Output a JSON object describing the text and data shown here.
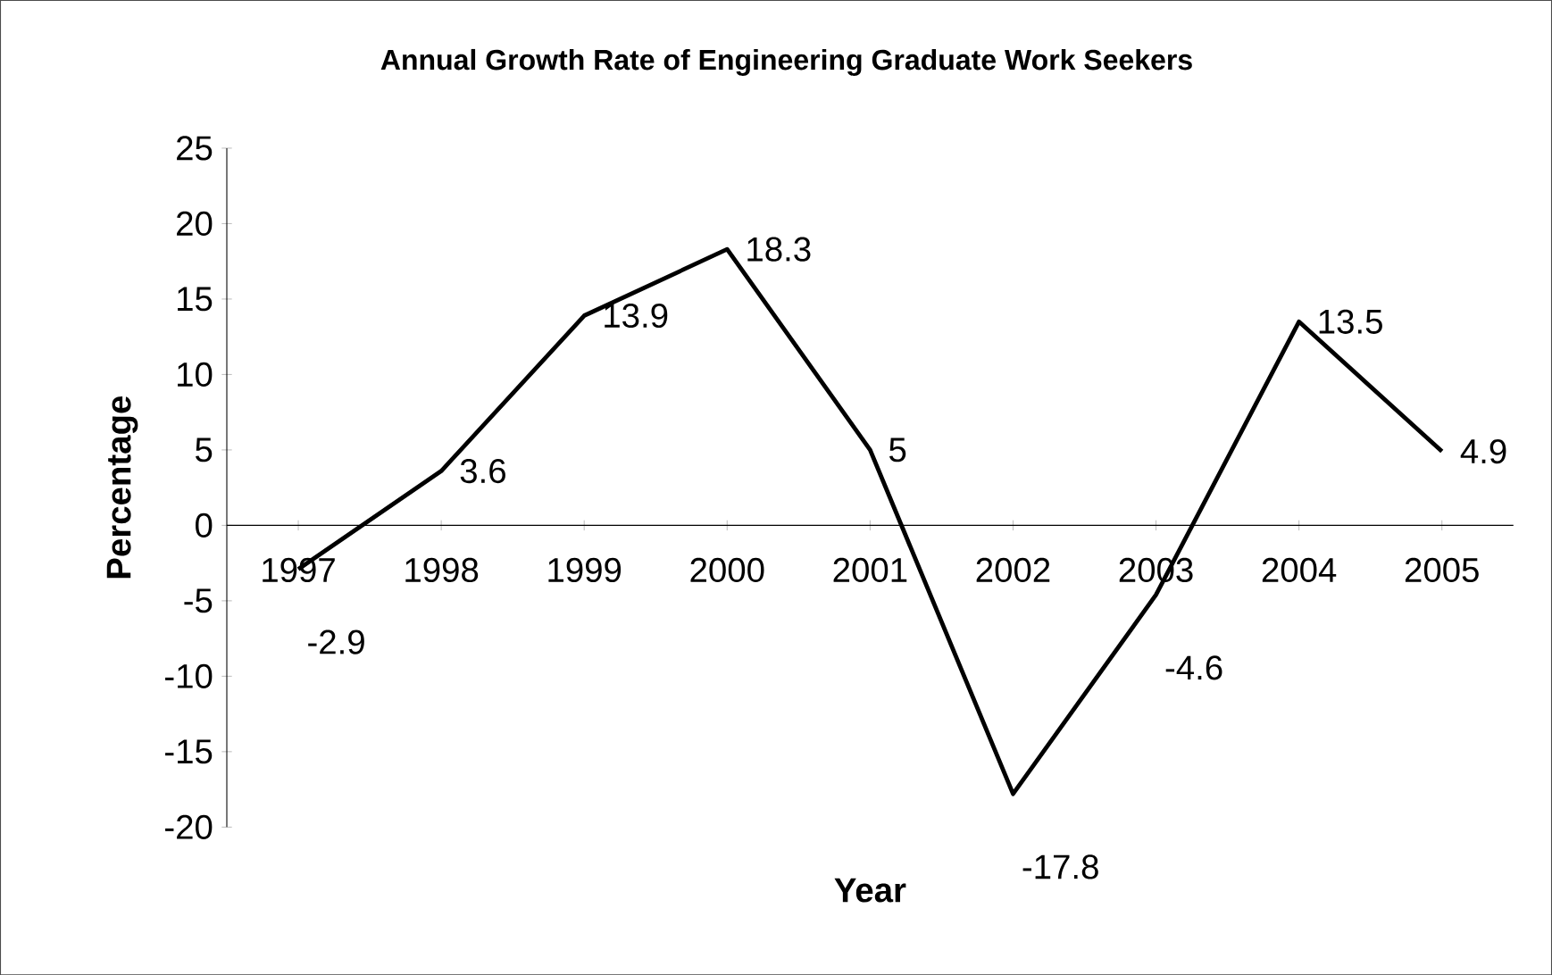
{
  "chart_data": {
    "type": "line",
    "title": "Annual Growth Rate of Engineering Graduate Work Seekers",
    "xlabel": "Year",
    "ylabel": "Percentage",
    "categories": [
      "1997",
      "1998",
      "1999",
      "2000",
      "2001",
      "2002",
      "2003",
      "2004",
      "2005"
    ],
    "values": [
      -2.9,
      3.6,
      13.9,
      18.3,
      5,
      -17.8,
      -4.6,
      13.5,
      4.9
    ],
    "color": "#000000",
    "ylim": [
      -20,
      25
    ],
    "yticks": [
      -20,
      -15,
      -10,
      -5,
      0,
      5,
      10,
      15,
      20,
      25
    ],
    "data_labels": true,
    "grid": false,
    "marker": "none",
    "line_style": "solid"
  }
}
